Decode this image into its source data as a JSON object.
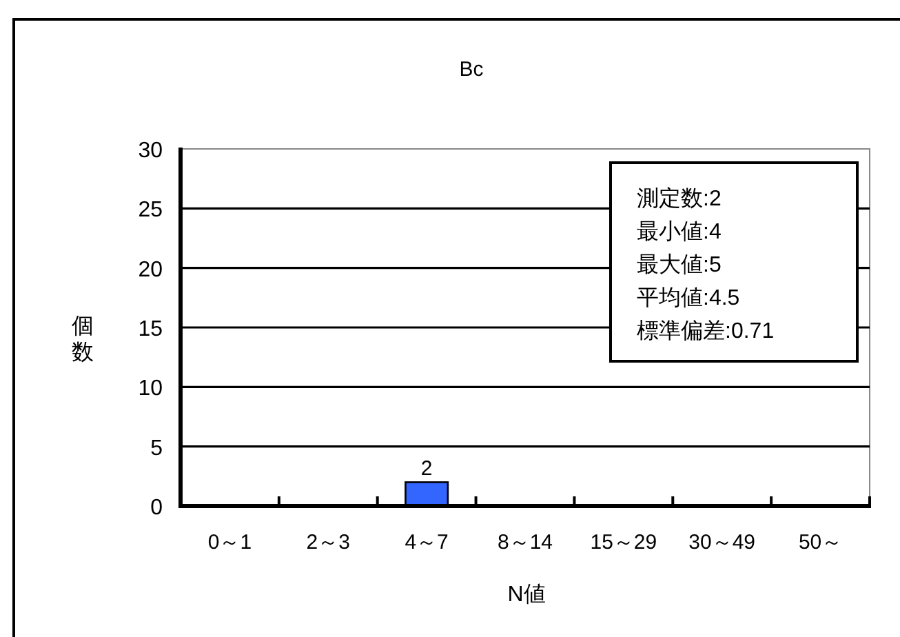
{
  "chart_data": {
    "type": "bar",
    "title": "Bc",
    "xlabel": "N値",
    "ylabel": "個数",
    "categories": [
      "0～1",
      "2～3",
      "4～7",
      "8～14",
      "15～29",
      "30～49",
      "50～"
    ],
    "values": [
      0,
      0,
      2,
      0,
      0,
      0,
      0
    ],
    "color": "#3366ff",
    "value_labels": [
      null,
      null,
      "2",
      null,
      null,
      null,
      null
    ],
    "ylim": [
      0,
      30
    ],
    "yticks": [
      0,
      5,
      10,
      15,
      20,
      25,
      30
    ],
    "grid": "y",
    "annotations": [
      "測定数:2",
      "最小値:4",
      "最大値:5",
      "平均値:4.5",
      "標準偏差:0.71"
    ]
  }
}
